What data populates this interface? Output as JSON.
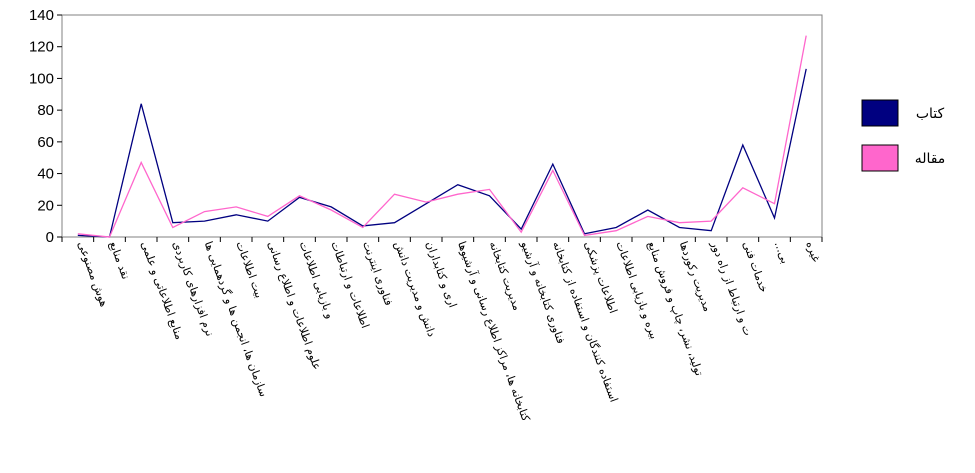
{
  "chart_data": {
    "type": "line",
    "title": "",
    "xlabel": "",
    "ylabel": "",
    "ylim": [
      0,
      140
    ],
    "yticks": [
      0,
      20,
      40,
      60,
      80,
      100,
      120,
      140
    ],
    "grid": false,
    "legend_position": "right",
    "categories": [
      "هوش مصنوعی",
      "نقد منابع",
      "منابع اطلاعاتی و علمی",
      "نرم افزارهای کاربردی",
      "سازمان ها، انجمن ها و گردهمایی ها",
      "بیت اطلاعات",
      "علوم اطلاعات و اطلاع رسانی",
      "و بازیابی اطلاعات",
      "اطلاعات و ارتباطات",
      "فناوری اینترنت",
      "دانش و مدیریت دانش",
      "اری و کتابداران",
      "کتابخانه ها، مراکز اطلاع رسانی و آرشیوها",
      "مدیریت کتابخانه",
      "فناوری کتابخانه و آرشیو",
      "استفاده کنندگان و استفاده از کتابخانه",
      "اطلاعات پزشکی",
      "بیره و بازیابی اطلاعات",
      "تولید، نشر، چاپ و فروش منابع",
      "مدیریت رکوردها",
      "ت و ارتباط از راه دور",
      "خدمات فنی",
      "...بی",
      "غیره"
    ],
    "series": [
      {
        "name": "کتاب",
        "color": "#000080",
        "values": [
          1,
          0,
          84,
          9,
          10,
          14,
          10,
          25,
          19,
          7,
          9,
          21,
          33,
          26,
          5,
          46,
          2,
          6,
          17,
          6,
          4,
          58,
          12,
          106
        ]
      },
      {
        "name": "مقاله",
        "color": "#ff66cc",
        "values": [
          2,
          0,
          47,
          6,
          16,
          19,
          13,
          26,
          17,
          6,
          27,
          22,
          27,
          30,
          3,
          42,
          1,
          4,
          13,
          9,
          10,
          31,
          21,
          127
        ]
      }
    ]
  }
}
